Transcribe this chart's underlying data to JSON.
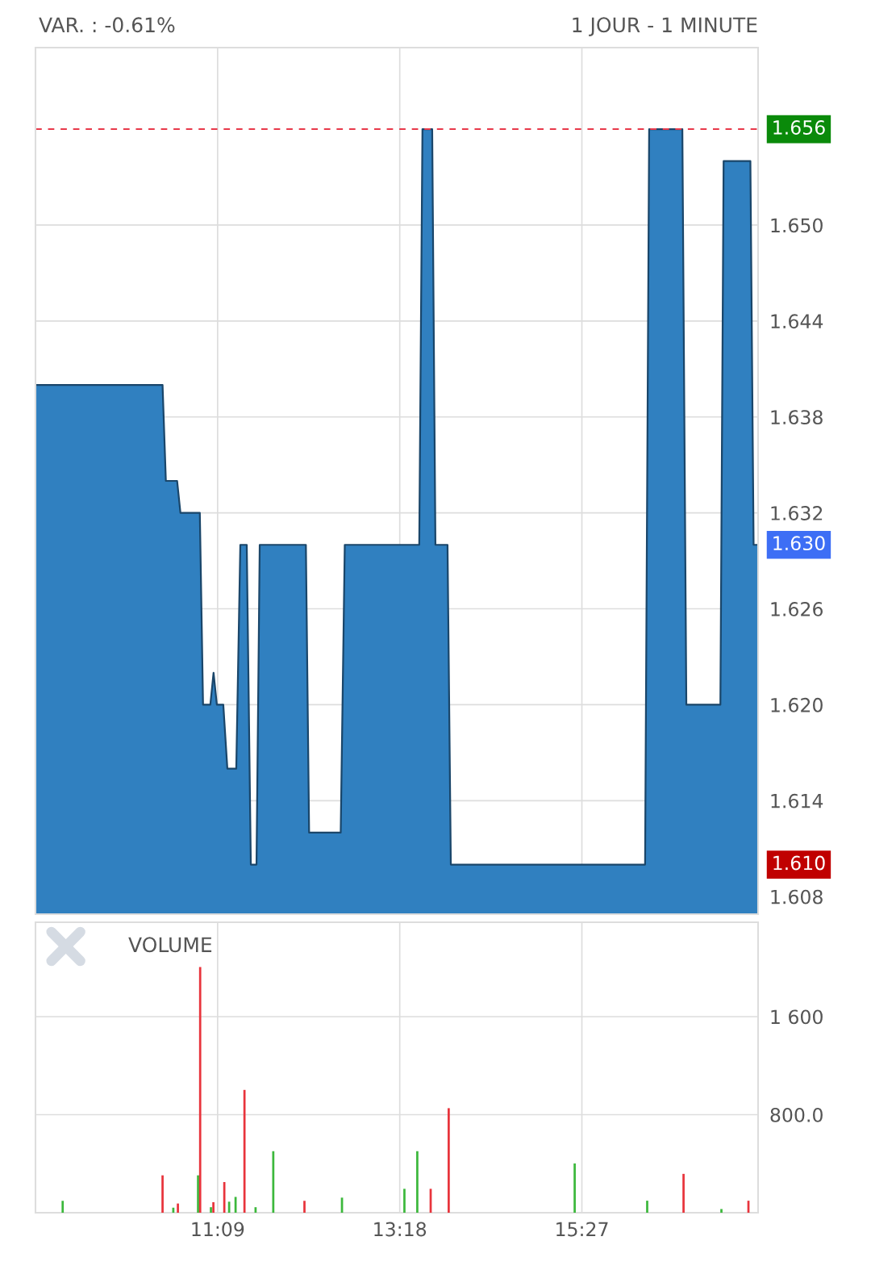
{
  "chart_data": [
    {
      "type": "area",
      "title": "VAR. : -0.61%",
      "subtitle": "1 JOUR - 1 MINUTE",
      "series": [
        {
          "color": "#3080c0",
          "x": [
            9.0,
            10.5,
            10.539,
            10.672,
            10.711,
            10.94,
            10.978,
            11.064,
            11.102,
            11.141,
            11.217,
            11.265,
            11.37,
            11.418,
            11.494,
            11.542,
            11.609,
            11.647,
            12.192,
            12.23,
            12.603,
            12.651,
            13.53,
            13.568,
            13.683,
            13.721,
            13.864,
            13.903,
            16.196,
            16.244,
            16.636,
            16.683,
            17.085,
            17.123,
            17.439,
            17.477,
            17.53
          ],
          "values": [
            1.64,
            1.64,
            1.634,
            1.634,
            1.632,
            1.632,
            1.62,
            1.62,
            1.622,
            1.62,
            1.62,
            1.616,
            1.616,
            1.63,
            1.63,
            1.61,
            1.61,
            1.63,
            1.63,
            1.612,
            1.612,
            1.63,
            1.63,
            1.656,
            1.656,
            1.63,
            1.63,
            1.61,
            1.61,
            1.656,
            1.656,
            1.62,
            1.62,
            1.654,
            1.654,
            1.63,
            1.63
          ]
        }
      ],
      "xlim": [
        9.0,
        17.53
      ],
      "xticks": [
        {
          "value": 11.15,
          "label": null
        },
        {
          "value": 13.3,
          "label": null
        },
        {
          "value": 15.45,
          "label": null
        }
      ],
      "ylim": [
        1.6069,
        1.6611
      ],
      "yticks": [
        1.608,
        1.614,
        {
          "value": 1.62,
          "label": "1.620"
        },
        1.626,
        1.632,
        1.638,
        1.644,
        {
          "value": 1.65,
          "label": "1.650"
        }
      ],
      "ref_lines": [
        {
          "axis": "y",
          "value": 1.656,
          "label": "1.656",
          "color": "#e8394a",
          "line_style": "dashed"
        }
      ],
      "annotations": [
        {
          "text": "1.630",
          "x": 17.53,
          "y": 1.63
        },
        {
          "text": "1.610",
          "x": 17.53,
          "y": 1.61
        }
      ],
      "grid": true,
      "tick_labels": "y"
    },
    {
      "type": "bar",
      "title": "VOLUME",
      "x": [
        9.321,
        10.5,
        10.627,
        10.681,
        10.919,
        10.944,
        11.071,
        11.1,
        11.229,
        11.286,
        11.362,
        11.467,
        11.598,
        11.807,
        12.175,
        12.618,
        13.355,
        13.507,
        13.665,
        13.878,
        15.365,
        16.221,
        16.65,
        17.097,
        17.416
      ],
      "values": [
        97,
        305,
        41,
        75,
        305,
        2005,
        45,
        86,
        250,
        90,
        129,
        1002,
        45,
        502,
        97,
        123,
        195,
        502,
        195,
        853,
        402,
        98,
        317,
        30,
        98
      ],
      "colors": [
        "#3cb83c",
        "#e8343c",
        "#3cb83c",
        "#e8343c",
        "#3cb83c",
        "#e8343c",
        "#3cb83c",
        "#e8343c",
        "#e8343c",
        "#3cb83c",
        "#3cb83c",
        "#e8343c",
        "#3cb83c",
        "#3cb83c",
        "#e8343c",
        "#3cb83c",
        "#3cb83c",
        "#3cb83c",
        "#e8343c",
        "#e8343c",
        "#3cb83c",
        "#3cb83c",
        "#e8343c",
        "#3cb83c",
        "#e8343c"
      ],
      "xlim": [
        9.0,
        17.53
      ],
      "xticks": [
        {
          "value": 11.15,
          "label": "11:09"
        },
        {
          "value": 13.3,
          "label": "13:18"
        },
        {
          "value": 15.45,
          "label": "15:27"
        }
      ],
      "ylim": [
        0,
        2370
      ],
      "yticks": [
        {
          "value": 800,
          "label": "800.0"
        },
        {
          "value": 1600,
          "label": "1 600"
        }
      ],
      "grid": true
    }
  ]
}
